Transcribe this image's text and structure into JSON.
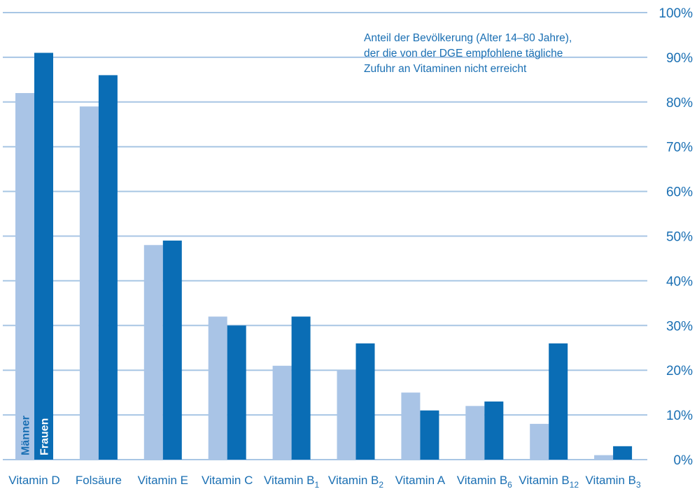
{
  "chart_data": {
    "type": "bar",
    "annotation": [
      "Anteil der Bevölkerung (Alter 14–80 Jahre),",
      "der die von der DGE empfohlene tägliche",
      "Zufuhr an Vitaminen nicht erreicht"
    ],
    "categories": [
      {
        "label": "Vitamin D",
        "sub": ""
      },
      {
        "label": "Folsäure",
        "sub": ""
      },
      {
        "label": "Vitamin E",
        "sub": ""
      },
      {
        "label": "Vitamin C",
        "sub": ""
      },
      {
        "label": "Vitamin B",
        "sub": "1"
      },
      {
        "label": "Vitamin B",
        "sub": "2"
      },
      {
        "label": "Vitamin A",
        "sub": ""
      },
      {
        "label": "Vitamin B",
        "sub": "6"
      },
      {
        "label": "Vitamin B",
        "sub": "12"
      },
      {
        "label": "Vitamin B",
        "sub": "3"
      }
    ],
    "series": [
      {
        "name": "Männer",
        "color": "#a9c4e6",
        "values": [
          82,
          79,
          48,
          32,
          21,
          20,
          15,
          12,
          8,
          1
        ]
      },
      {
        "name": "Frauen",
        "color": "#0a6db5",
        "values": [
          91,
          86,
          49,
          30,
          32,
          26,
          11,
          13,
          26,
          3
        ]
      }
    ],
    "yticks": [
      "0%",
      "10%",
      "20%",
      "30%",
      "40%",
      "50%",
      "60%",
      "70%",
      "80%",
      "90%",
      "100%"
    ],
    "ylim": [
      0,
      100
    ],
    "grid": true,
    "grid_color": "#a8c6e4",
    "text_color": "#1a6fb3"
  }
}
